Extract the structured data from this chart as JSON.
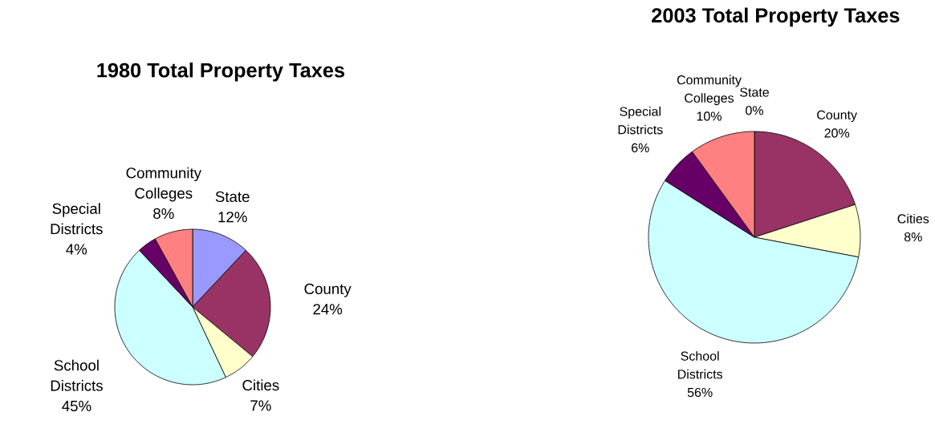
{
  "chart_data": [
    {
      "type": "pie",
      "title": "1980 Total Property Taxes",
      "categories": [
        "State",
        "County",
        "Cities",
        "School Districts",
        "Special Districts",
        "Community Colleges"
      ],
      "values": [
        12,
        24,
        7,
        45,
        4,
        8
      ],
      "value_labels": [
        "12%",
        "24%",
        "7%",
        "45%",
        "4%",
        "8%"
      ],
      "colors": [
        "#9999ff",
        "#993366",
        "#ffffcc",
        "#ccffff",
        "#660066",
        "#ff8080"
      ]
    },
    {
      "type": "pie",
      "title": "2003 Total Property Taxes",
      "categories": [
        "State",
        "County",
        "Cities",
        "School Districts",
        "Special Districts",
        "Community Colleges"
      ],
      "values": [
        0,
        20,
        8,
        56,
        6,
        10
      ],
      "value_labels": [
        "0%",
        "20%",
        "8%",
        "56%",
        "6%",
        "10%"
      ],
      "colors": [
        "#9999ff",
        "#993366",
        "#ffffcc",
        "#ccffff",
        "#660066",
        "#ff8080"
      ]
    }
  ]
}
